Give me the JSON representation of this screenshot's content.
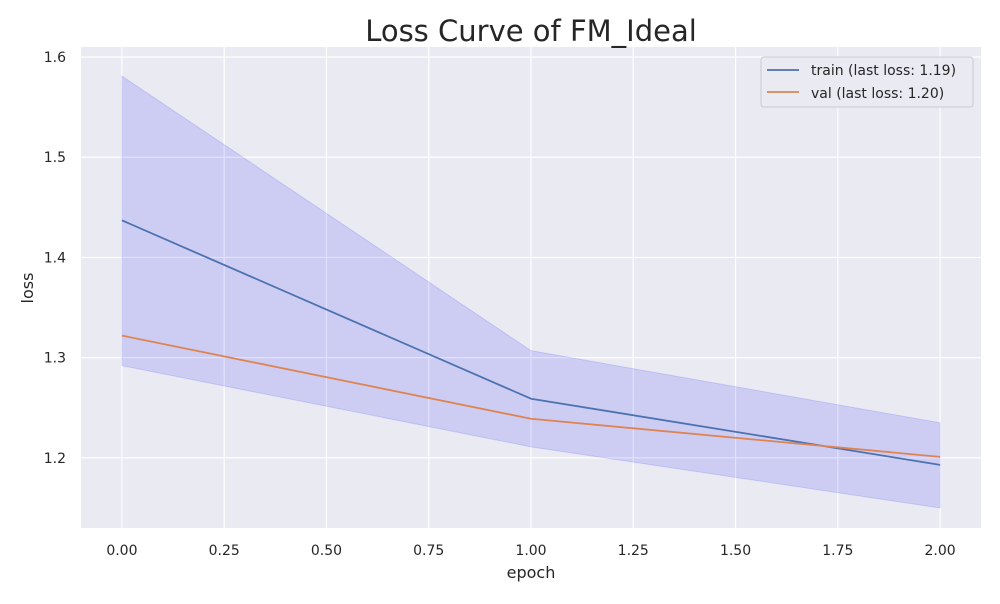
{
  "chart_data": {
    "type": "line",
    "title": "Loss Curve of FM_Ideal",
    "xlabel": "epoch",
    "ylabel": "loss",
    "xlim": [
      -0.1,
      2.1
    ],
    "ylim": [
      1.13,
      1.61
    ],
    "x_ticks": [
      0.0,
      0.25,
      0.5,
      0.75,
      1.0,
      1.25,
      1.5,
      1.75,
      2.0
    ],
    "x_tick_labels": [
      "0.00",
      "0.25",
      "0.50",
      "0.75",
      "1.00",
      "1.25",
      "1.50",
      "1.75",
      "2.00"
    ],
    "y_ticks": [
      1.2,
      1.3,
      1.4,
      1.5,
      1.6
    ],
    "y_tick_labels": [
      "1.2",
      "1.3",
      "1.4",
      "1.5",
      "1.6"
    ],
    "grid": true,
    "legend_position": "top-right",
    "x": [
      0,
      1,
      2
    ],
    "series": [
      {
        "name": "train (last loss: 1.19)",
        "values": [
          1.437,
          1.259,
          1.193
        ],
        "color": "#4c72b0"
      },
      {
        "name": "val (last loss: 1.20)",
        "values": [
          1.322,
          1.239,
          1.201
        ],
        "color": "#dd8452"
      }
    ],
    "band": {
      "upper": [
        1.581,
        1.307,
        1.235
      ],
      "lower": [
        1.292,
        1.211,
        1.15
      ],
      "color": "#0000ff",
      "opacity": 0.12
    },
    "background_color": "#eaeaf2",
    "grid_color": "#ffffff"
  }
}
